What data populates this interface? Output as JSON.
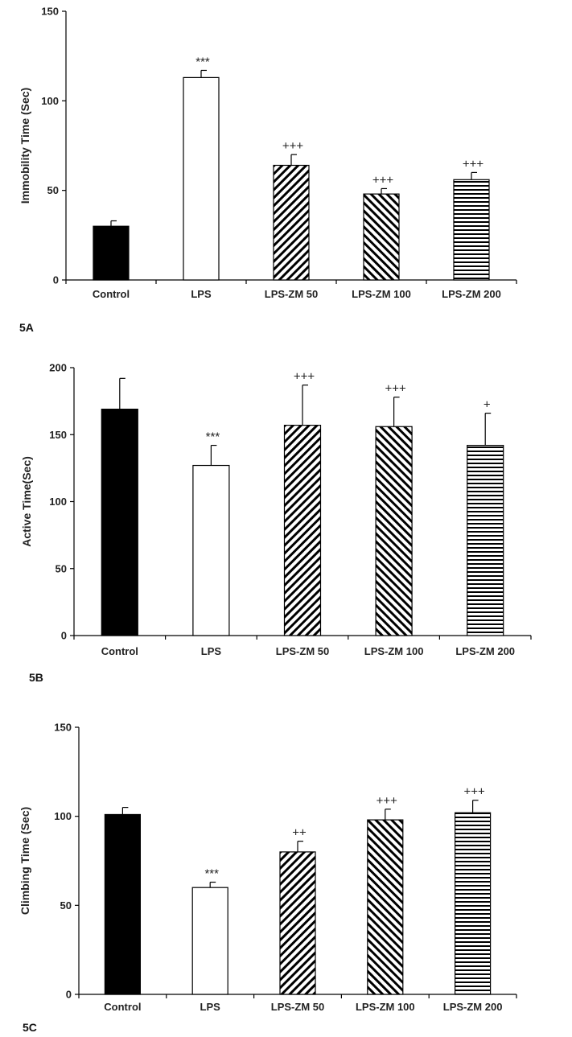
{
  "colors": {
    "ink": "#000000",
    "annotation": "#222222",
    "background": "#ffffff"
  },
  "chart_data": [
    {
      "panel_label": "5A",
      "type": "bar",
      "categories": [
        "Control",
        "LPS",
        "LPS-ZM 50",
        "LPS-ZM 100",
        "LPS-ZM 200"
      ],
      "fills": [
        "solid",
        "empty",
        "diagonal-up",
        "diagonal-down",
        "horizontal"
      ],
      "values": [
        30,
        113,
        64,
        48,
        56
      ],
      "errors": [
        3,
        4,
        6,
        3,
        4
      ],
      "annotations": [
        "",
        "***",
        "+++",
        "+++",
        "+++"
      ],
      "ylabel": "Immobility Time (Sec)",
      "ylim": [
        0,
        150
      ],
      "yticks": [
        0,
        50,
        100,
        150
      ]
    },
    {
      "panel_label": "5B",
      "type": "bar",
      "categories": [
        "Control",
        "LPS",
        "LPS-ZM 50",
        "LPS-ZM 100",
        "LPS-ZM 200"
      ],
      "fills": [
        "solid",
        "empty",
        "diagonal-up",
        "diagonal-down",
        "horizontal"
      ],
      "values": [
        169,
        127,
        157,
        156,
        142
      ],
      "errors": [
        23,
        15,
        30,
        22,
        24
      ],
      "annotations": [
        "",
        "***",
        "+++",
        "+++",
        "+"
      ],
      "ylabel": "Active Time(Sec)",
      "ylim": [
        0,
        200
      ],
      "yticks": [
        0,
        50,
        100,
        150,
        200
      ]
    },
    {
      "panel_label": "5C",
      "type": "bar",
      "categories": [
        "Control",
        "LPS",
        "LPS-ZM 50",
        "LPS-ZM 100",
        "LPS-ZM 200"
      ],
      "fills": [
        "solid",
        "empty",
        "diagonal-up",
        "diagonal-down",
        "horizontal"
      ],
      "values": [
        101,
        60,
        80,
        98,
        102
      ],
      "errors": [
        4,
        3,
        6,
        6,
        7
      ],
      "annotations": [
        "",
        "***",
        "++",
        "+++",
        "+++"
      ],
      "ylabel": "Climbing Time (Sec)",
      "ylim": [
        0,
        150
      ],
      "yticks": [
        0,
        50,
        100,
        150
      ]
    }
  ]
}
